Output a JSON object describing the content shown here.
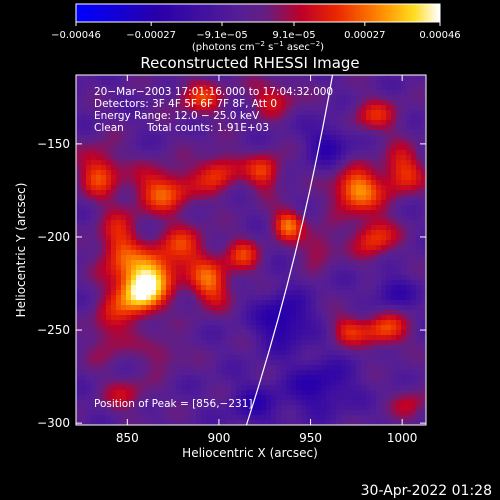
{
  "chart_data": {
    "type": "heatmap",
    "title": "Reconstructed RHESSI Image",
    "xlabel": "Heliocentric X (arcsec)",
    "ylabel": "Heliocentric Y (arcsec)",
    "xlim": [
      822,
      1013
    ],
    "ylim": [
      -301,
      -113
    ],
    "x_ticks": [
      850,
      900,
      950,
      1000
    ],
    "x_tick_labels": [
      "850",
      "900",
      "950",
      "1000"
    ],
    "y_ticks": [
      -150,
      -200,
      -250,
      -300
    ],
    "y_tick_labels": [
      "−150",
      "−200",
      "−250",
      "−300"
    ],
    "colorbar": {
      "range": [
        -0.00046,
        0.00046
      ],
      "tick_values": [
        -0.00046,
        -0.00027,
        -9.1e-05,
        9.1e-05,
        0.00027,
        0.00046
      ],
      "tick_labels": [
        "−0.00046",
        "−0.00027",
        "−9.1e−05",
        "9.1e−05",
        "0.00027",
        "0.00046"
      ],
      "units_text": [
        "(photons cm",
        "−2",
        " s",
        "−1",
        " asec",
        "−2",
        ")"
      ]
    },
    "annotations": {
      "line1": "20−Mar−2003 17:01:16.000 to 17:04:32.000",
      "line2": "Detectors: 3F 4F 5F 6F 7F 8F, Att 0",
      "line3": "Energy Range: 12.0 − 25.0 keV",
      "line4_a": "Clean",
      "line4_b": "Total counts: 1.91E+03",
      "peak": "Position of Peak = [856,−231]"
    },
    "peak": [
      856,
      -231
    ],
    "sources": [
      {
        "x": 857,
        "y": -230,
        "amp": 1.0,
        "sx": 9,
        "sy": 9
      },
      {
        "x": 865,
        "y": -218,
        "amp": 0.55,
        "sx": 10,
        "sy": 8
      },
      {
        "x": 895,
        "y": -225,
        "amp": 0.62,
        "sx": 8,
        "sy": 9
      },
      {
        "x": 880,
        "y": -205,
        "amp": 0.45,
        "sx": 10,
        "sy": 8
      },
      {
        "x": 845,
        "y": -205,
        "amp": 0.55,
        "sx": 8,
        "sy": 12
      },
      {
        "x": 840,
        "y": -250,
        "amp": 0.35,
        "sx": 8,
        "sy": 12
      },
      {
        "x": 835,
        "y": -165,
        "amp": 0.55,
        "sx": 8,
        "sy": 10
      },
      {
        "x": 870,
        "y": -175,
        "amp": 0.6,
        "sx": 12,
        "sy": 9
      },
      {
        "x": 900,
        "y": -165,
        "amp": 0.5,
        "sx": 8,
        "sy": 8
      },
      {
        "x": 890,
        "y": -125,
        "amp": 0.45,
        "sx": 10,
        "sy": 7
      },
      {
        "x": 925,
        "y": -165,
        "amp": 0.55,
        "sx": 7,
        "sy": 7
      },
      {
        "x": 938,
        "y": -193,
        "amp": 0.65,
        "sx": 6,
        "sy": 6
      },
      {
        "x": 913,
        "y": -210,
        "amp": 0.45,
        "sx": 7,
        "sy": 7
      },
      {
        "x": 975,
        "y": -175,
        "amp": 0.8,
        "sx": 9,
        "sy": 8
      },
      {
        "x": 1000,
        "y": -165,
        "amp": 0.55,
        "sx": 8,
        "sy": 9
      },
      {
        "x": 985,
        "y": -200,
        "amp": 0.55,
        "sx": 8,
        "sy": 8
      },
      {
        "x": 955,
        "y": -205,
        "amp": 0.35,
        "sx": 7,
        "sy": 7
      },
      {
        "x": 990,
        "y": -250,
        "amp": 0.55,
        "sx": 9,
        "sy": 7
      },
      {
        "x": 970,
        "y": -250,
        "amp": 0.4,
        "sx": 7,
        "sy": 6
      },
      {
        "x": 930,
        "y": -125,
        "amp": 0.4,
        "sx": 9,
        "sy": 7
      },
      {
        "x": 985,
        "y": -135,
        "amp": 0.4,
        "sx": 10,
        "sy": 7
      },
      {
        "x": 870,
        "y": -262,
        "amp": 0.3,
        "sx": 8,
        "sy": 6
      },
      {
        "x": 850,
        "y": -285,
        "amp": 0.3,
        "sx": 9,
        "sy": 7
      },
      {
        "x": 1005,
        "y": -290,
        "amp": 0.3,
        "sx": 7,
        "sy": 7
      },
      {
        "x": 935,
        "y": -245,
        "amp": -0.55,
        "sx": 10,
        "sy": 10
      },
      {
        "x": 955,
        "y": -280,
        "amp": -0.45,
        "sx": 12,
        "sy": 10
      },
      {
        "x": 920,
        "y": -290,
        "amp": -0.35,
        "sx": 10,
        "sy": 8
      },
      {
        "x": 960,
        "y": -150,
        "amp": -0.4,
        "sx": 8,
        "sy": 8
      },
      {
        "x": 995,
        "y": -230,
        "amp": -0.35,
        "sx": 8,
        "sy": 6
      }
    ],
    "limb_curve": [
      [
        915,
        -301
      ],
      [
        935,
        -240
      ],
      [
        950,
        -180
      ],
      [
        962,
        -113
      ]
    ],
    "grid": false,
    "legend": "none"
  },
  "footer": {
    "date": "30-Apr-2022 01:28"
  }
}
